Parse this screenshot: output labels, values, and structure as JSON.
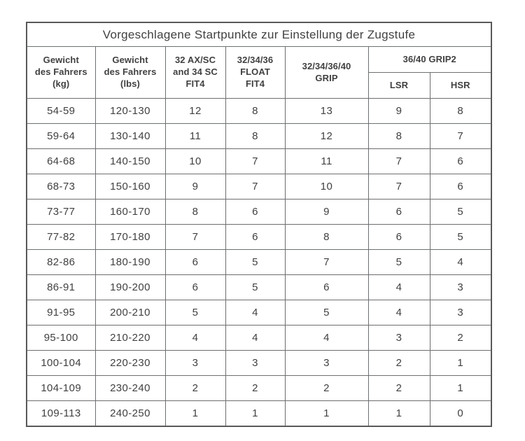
{
  "table": {
    "title": "Vorgeschlagene Startpunkte zur Einstellung der Zugstufe",
    "columns": [
      {
        "label": "Gewicht\ndes Fahrers\n(kg)"
      },
      {
        "label": "Gewicht\ndes Fahrers\n(lbs)"
      },
      {
        "label": "32 AX/SC\nand 34 SC\nFIT4"
      },
      {
        "label": "32/34/36\nFLOAT\nFIT4"
      },
      {
        "label": "32/34/36/40\nGRIP"
      },
      {
        "label": "36/40 GRIP2",
        "subcolumns": [
          "LSR",
          "HSR"
        ]
      }
    ],
    "rows": [
      [
        "54-59",
        "120-130",
        12,
        8,
        13,
        9,
        8
      ],
      [
        "59-64",
        "130-140",
        11,
        8,
        12,
        8,
        7
      ],
      [
        "64-68",
        "140-150",
        10,
        7,
        11,
        7,
        6
      ],
      [
        "68-73",
        "150-160",
        9,
        7,
        10,
        7,
        6
      ],
      [
        "73-77",
        "160-170",
        8,
        6,
        9,
        6,
        5
      ],
      [
        "77-82",
        "170-180",
        7,
        6,
        8,
        6,
        5
      ],
      [
        "82-86",
        "180-190",
        6,
        5,
        7,
        5,
        4
      ],
      [
        "86-91",
        "190-200",
        6,
        5,
        6,
        4,
        3
      ],
      [
        "91-95",
        "200-210",
        5,
        4,
        5,
        4,
        3
      ],
      [
        "95-100",
        "210-220",
        4,
        4,
        4,
        3,
        2
      ],
      [
        "100-104",
        "220-230",
        3,
        3,
        3,
        2,
        1
      ],
      [
        "104-109",
        "230-240",
        2,
        2,
        2,
        2,
        1
      ],
      [
        "109-113",
        "240-250",
        1,
        1,
        1,
        1,
        0
      ]
    ]
  },
  "colors": {
    "text": "#414042",
    "border": "#6d6e71",
    "background": "#ffffff"
  }
}
